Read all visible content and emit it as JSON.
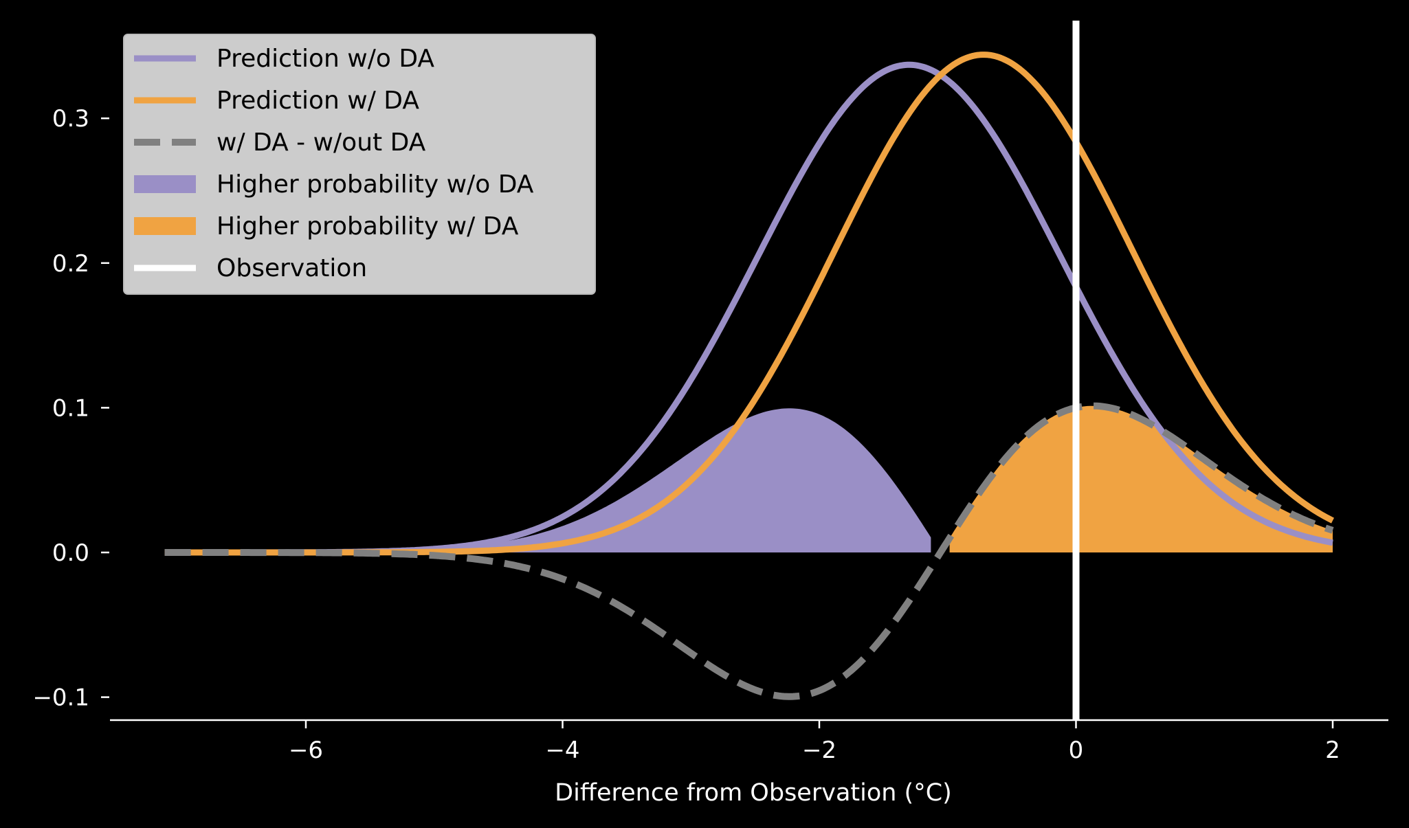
{
  "colors": {
    "background": "#000000",
    "axis": "#ffffff",
    "purple": "#9A8FC6",
    "orange": "#F0A342",
    "diff": "#808080",
    "observation": "#ffffff",
    "legend_bg": "#cccccc"
  },
  "chart_data": {
    "type": "line",
    "title": "",
    "xlabel": "Difference from Observation (°C)",
    "ylabel": "",
    "xlim": [
      -7.5,
      2.45
    ],
    "ylim": [
      -0.118,
      0.36
    ],
    "x_ticks": [
      -6,
      -4,
      -2,
      0,
      2
    ],
    "x_tick_labels": [
      "−6",
      "−4",
      "−2",
      "0",
      "2"
    ],
    "y_ticks": [
      -0.1,
      0.0,
      0.1,
      0.2,
      0.3
    ],
    "y_tick_labels": [
      "−0.1",
      "0.0",
      "0.1",
      "0.2",
      "0.3"
    ],
    "x_range": [
      -7.1,
      2.0
    ],
    "series": [
      {
        "name": "Prediction w/o DA",
        "style": "line",
        "distribution": "normal",
        "mean": -1.3,
        "std": 1.18,
        "peak": 0.337
      },
      {
        "name": "Prediction w/ DA",
        "style": "line",
        "distribution": "normal",
        "mean": -0.72,
        "std": 1.16,
        "peak": 0.344
      },
      {
        "name": "w/ DA - w/out DA",
        "style": "dashed",
        "derived": "difference of the two predictions",
        "min": {
          "x": -2.2,
          "y": -0.094
        },
        "max": {
          "x": 0.15,
          "y": 0.095
        }
      }
    ],
    "fills": [
      {
        "name": "Higher probability w/o DA",
        "where": "difference < 0",
        "x_range": [
          -7.1,
          -1.12
        ]
      },
      {
        "name": "Higher probability w/ DA",
        "where": "difference > 0",
        "x_range": [
          -1.0,
          2.0
        ]
      }
    ],
    "vlines": [
      {
        "name": "Observation",
        "x": 0
      }
    ],
    "legend": {
      "position": "top-left",
      "entries": [
        {
          "label": "Prediction w/o DA",
          "kind": "line"
        },
        {
          "label": "Prediction w/ DA",
          "kind": "line"
        },
        {
          "label": "w/ DA - w/out DA",
          "kind": "dashed"
        },
        {
          "label": "Higher probability w/o DA",
          "kind": "patch"
        },
        {
          "label": "Higher probability w/ DA",
          "kind": "patch"
        },
        {
          "label": "Observation",
          "kind": "line"
        }
      ]
    },
    "grid": false
  }
}
